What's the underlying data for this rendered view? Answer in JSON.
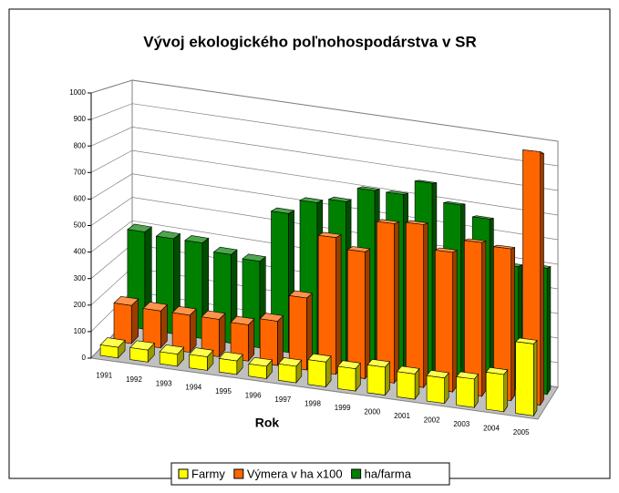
{
  "chart_data": {
    "type": "bar",
    "title": "Vývoj ekologického poľnohospodárstva v SR",
    "xlabel": "Rok",
    "categories": [
      "1991",
      "1992",
      "1993",
      "1994",
      "1995",
      "1996",
      "1997",
      "1998",
      "1999",
      "2000",
      "2001",
      "2002",
      "2003",
      "2004",
      "2005"
    ],
    "series": [
      {
        "name": "Farmy",
        "color": "#ffff00",
        "values": [
          40,
          45,
          45,
          50,
          50,
          45,
          60,
          90,
          80,
          100,
          90,
          90,
          100,
          130,
          250
        ]
      },
      {
        "name": "Výmera v ha x100",
        "color": "#ff6600",
        "values": [
          150,
          145,
          145,
          145,
          140,
          170,
          275,
          520,
          480,
          600,
          610,
          520,
          570,
          560,
          930
        ]
      },
      {
        "name": "ha/farma",
        "color": "#008000",
        "values": [
          400,
          390,
          390,
          360,
          350,
          560,
          620,
          640,
          700,
          700,
          760,
          690,
          650,
          480,
          490
        ]
      }
    ],
    "ylim": [
      0,
      1000
    ],
    "yticks": [
      0,
      100,
      200,
      300,
      400,
      500,
      600,
      700,
      800,
      900,
      1000
    ],
    "grid": true,
    "legend": "bottom"
  }
}
